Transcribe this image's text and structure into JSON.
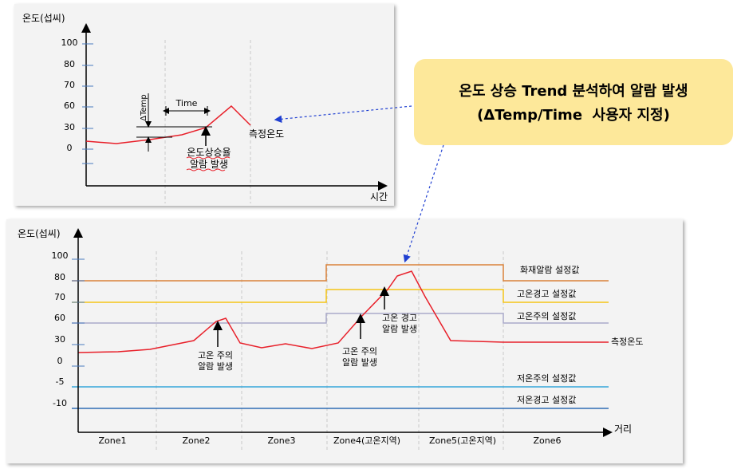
{
  "top_chart": {
    "ylabel": "온도(섭씨)",
    "xlabel": "시간",
    "y_ticks": [
      "100",
      "80",
      "70",
      "60",
      "30",
      "0"
    ],
    "delta_temp_label": "ΔTemp",
    "time_label": "Time",
    "rise_alarm_label_1": "온도상승율",
    "rise_alarm_label_2": "알람 발생",
    "measured_temp_label": "측정온도"
  },
  "callout": {
    "line1": "온도 상승 Trend 분석하여 알람 발생",
    "line2": "(ΔTemp/Time  사용자 지정)"
  },
  "bottom_chart": {
    "ylabel": "온도(섭씨)",
    "xlabel": "거리",
    "y_ticks": [
      "100",
      "80",
      "70",
      "60",
      "30",
      "0",
      "-5",
      "-10"
    ],
    "zones": [
      "Zone1",
      "Zone2",
      "Zone3",
      "Zone4(고온지역)",
      "Zone5(고온지역)",
      "Zone6"
    ],
    "threshold_labels": {
      "fire": "화재알람 설정값",
      "high_warning": "고온경고 설정값",
      "high_caution": "고온주의 설정값",
      "measured": "측정온도",
      "low_caution": "저온주의 설정값",
      "low_warning": "저온경고 설정값"
    },
    "annotations": {
      "zone2_caution_1": "고온 주의",
      "zone2_caution_2": "알람 발생",
      "zone4_caution_1": "고온 주의",
      "zone4_caution_2": "알람 발생",
      "zone4_warning_1": "고온 경고",
      "zone4_warning_2": "알람 발생"
    },
    "colors": {
      "fire": "#d9823a",
      "high_warning": "#f5c518",
      "high_caution": "#a9a9c9",
      "measured": "#e8202a",
      "low_caution": "#35a6d9",
      "low_warning": "#2f6db5"
    }
  }
}
